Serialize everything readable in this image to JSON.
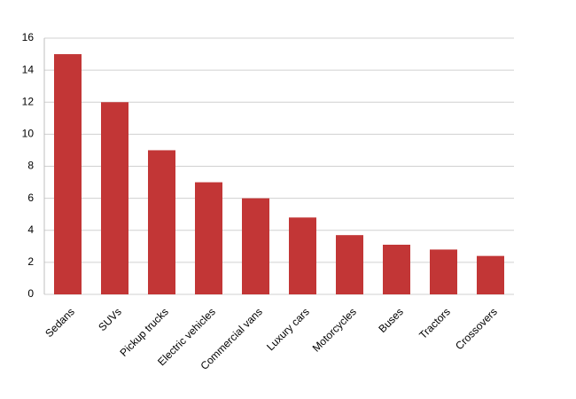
{
  "chart_data": {
    "type": "bar",
    "categories": [
      "Sedans",
      "SUVs",
      "Pickup trucks",
      "Electric vehicles",
      "Commercial vans",
      "Luxury cars",
      "Motorcycles",
      "Buses",
      "Tractors",
      "Crossovers"
    ],
    "values": [
      15,
      12,
      9,
      7,
      6,
      4.8,
      3.7,
      3.1,
      2.8,
      2.4
    ],
    "color": "#c23636",
    "ylim": [
      0,
      16
    ],
    "yticks": [
      0,
      2,
      4,
      6,
      8,
      10,
      12,
      14,
      16
    ],
    "grid": true
  }
}
